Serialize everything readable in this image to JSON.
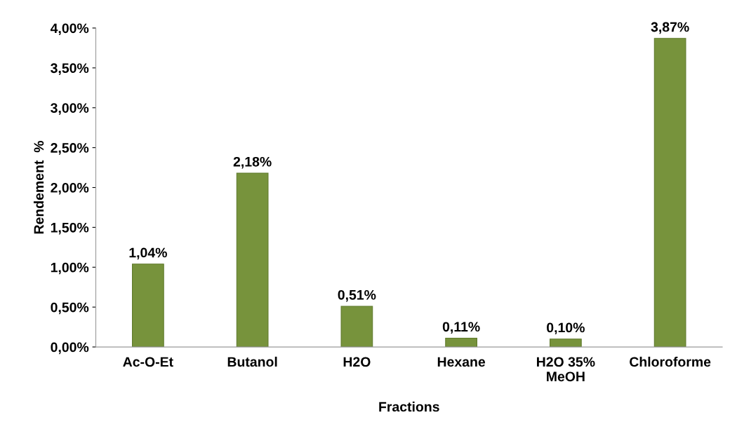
{
  "chart_data": {
    "type": "bar",
    "xlabel": "Fractions",
    "ylabel": "Rendement  %",
    "categories": [
      "Ac-O-Et",
      "Butanol",
      "H2O",
      "Hexane",
      "H2O 35%\nMeOH",
      "Chloroforme"
    ],
    "values": [
      1.04,
      2.18,
      0.51,
      0.11,
      0.1,
      3.87
    ],
    "value_labels": [
      "1,04%",
      "2,18%",
      "0,51%",
      "0,11%",
      "0,10%",
      "3,87%"
    ],
    "color": "#77933c",
    "ylim": [
      0,
      4.0
    ],
    "yticks": [
      {
        "value": 0,
        "label": "0,00%"
      },
      {
        "value": 0.5,
        "label": "0,50%"
      },
      {
        "value": 1.0,
        "label": "1,00%"
      },
      {
        "value": 1.5,
        "label": "1,50%"
      },
      {
        "value": 2.0,
        "label": "2,00%"
      },
      {
        "value": 2.5,
        "label": "2,50%"
      },
      {
        "value": 3.0,
        "label": "3,00%"
      },
      {
        "value": 3.5,
        "label": "3,50%"
      },
      {
        "value": 4.0,
        "label": "4,00%"
      }
    ],
    "grid": false,
    "legend": false
  }
}
